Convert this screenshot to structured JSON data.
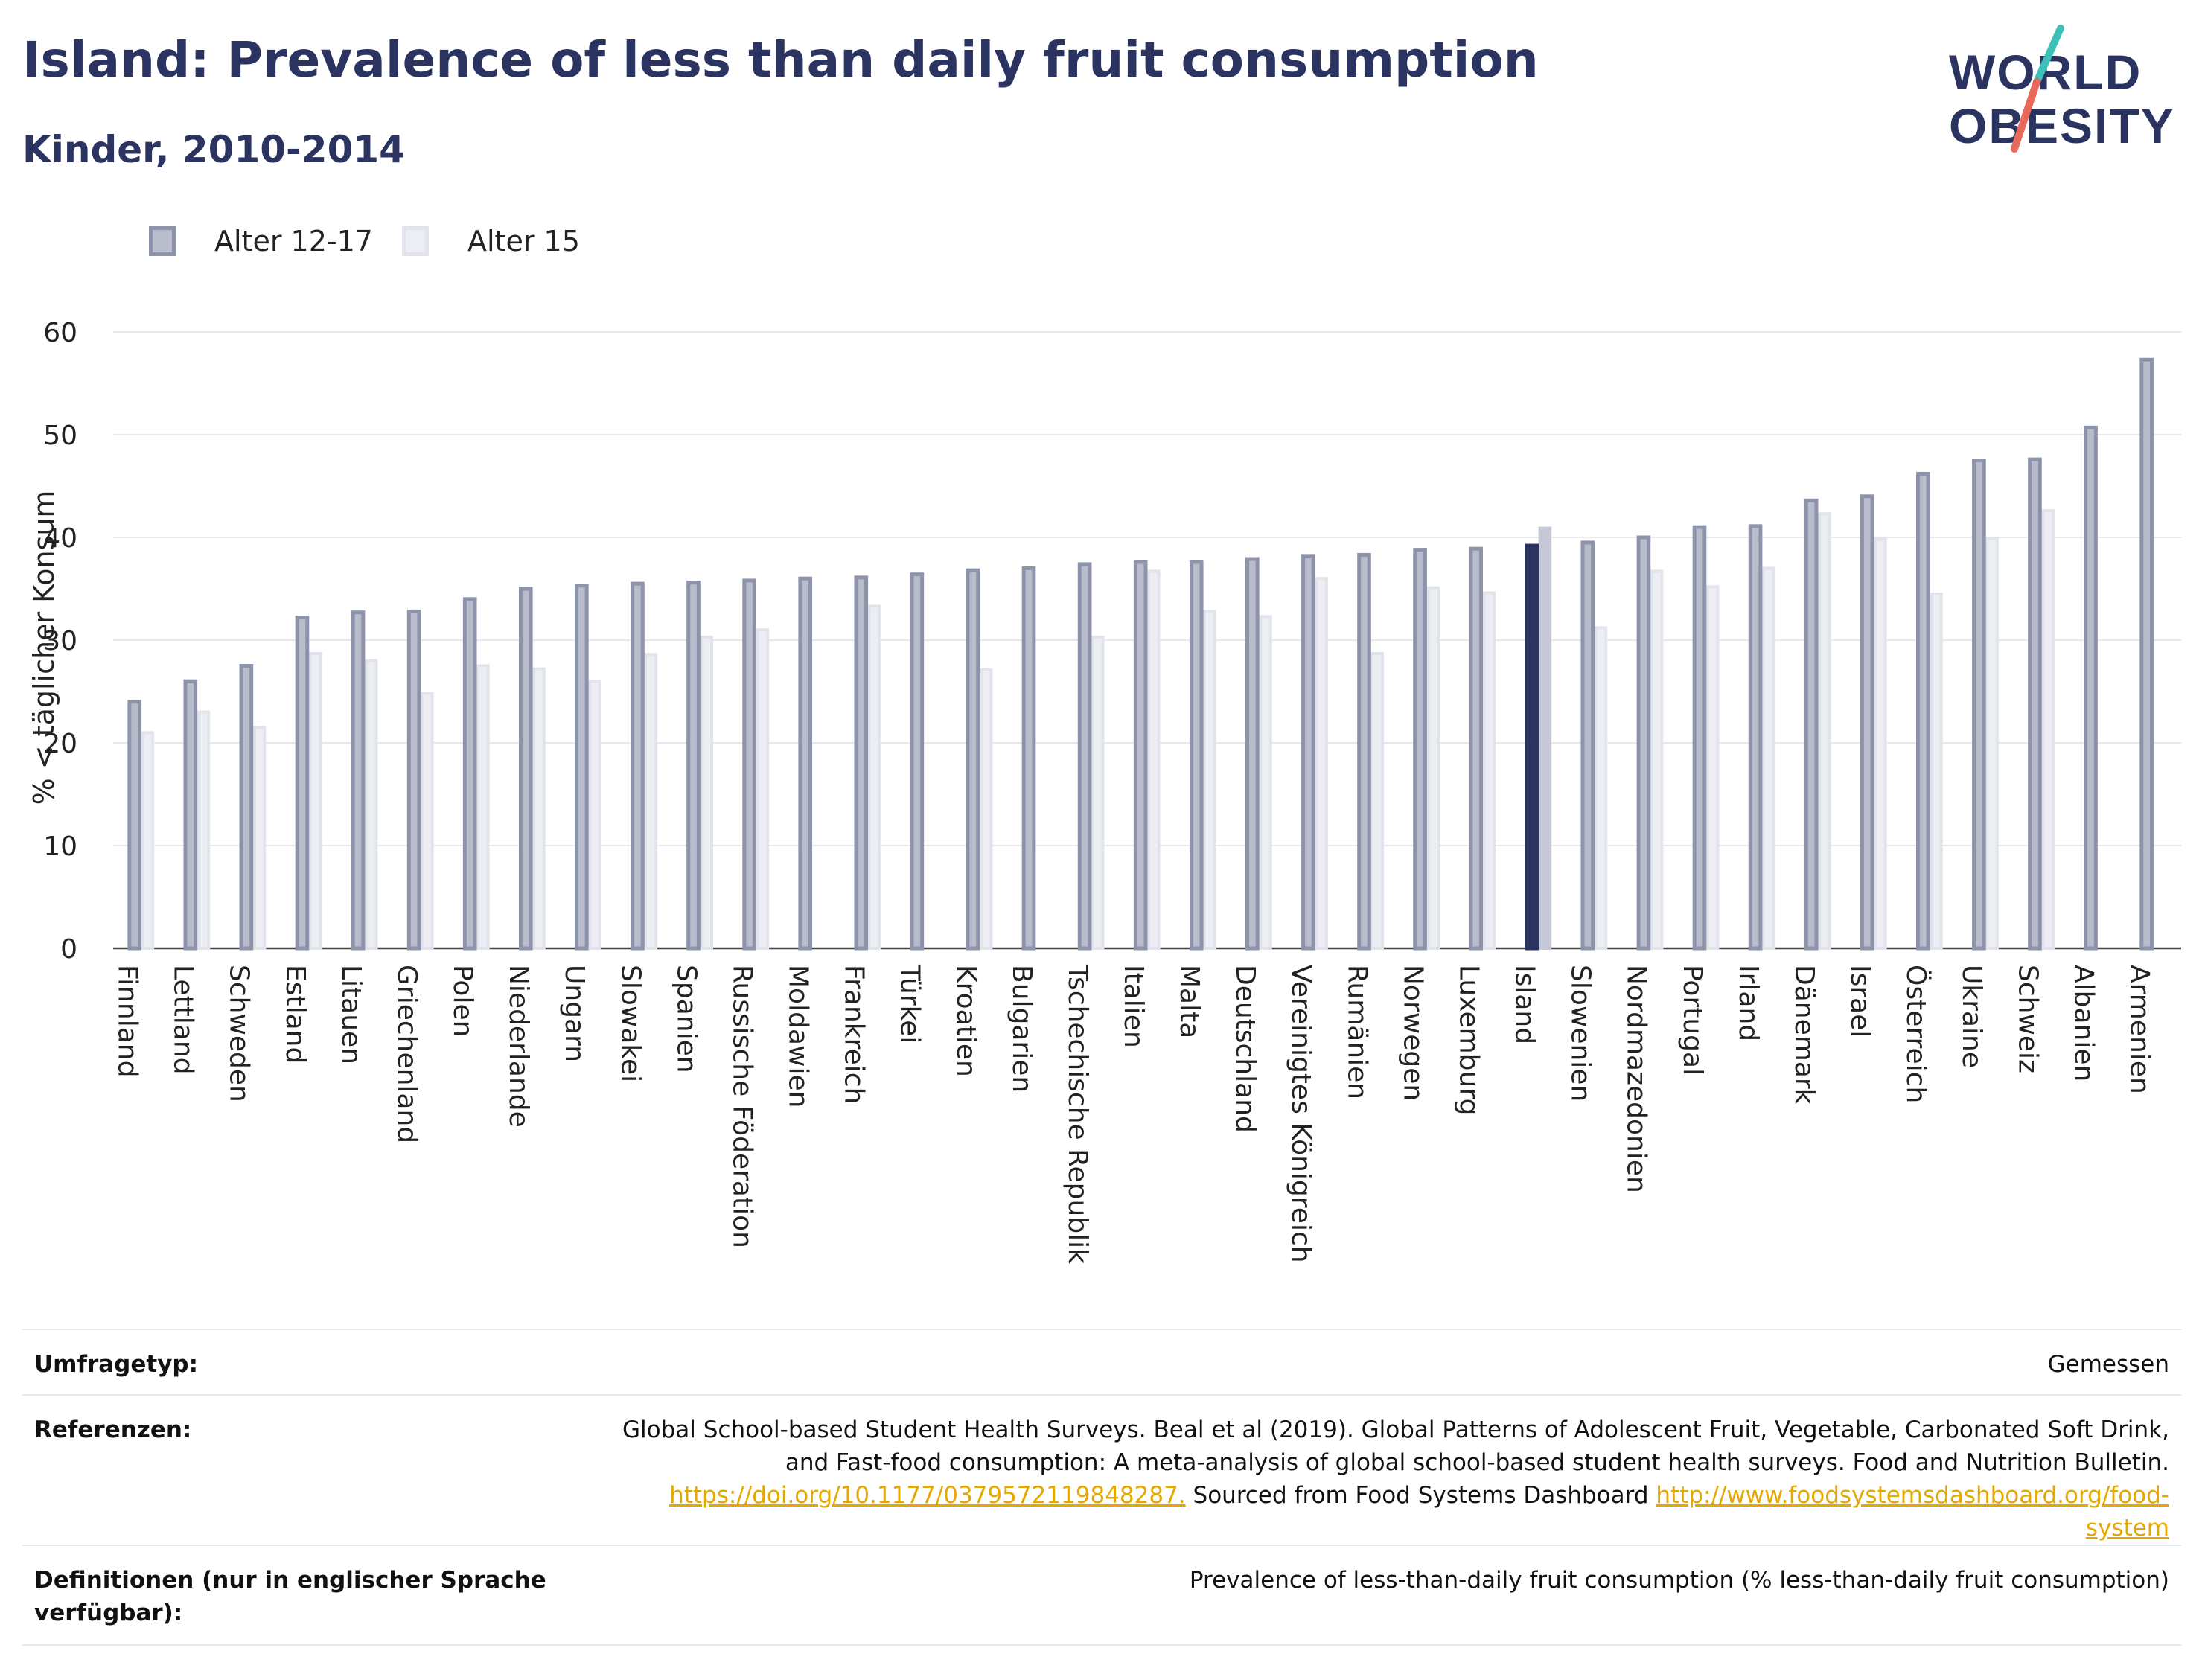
{
  "header": {
    "title": "Island: Prevalence of less than daily fruit consumption",
    "subtitle": "Kinder, 2010-2014"
  },
  "logo": {
    "line1": "WORLD",
    "line2": "OBESITY"
  },
  "colors": {
    "series_a_fill": "#b9bccb",
    "series_a_stroke": "#8d93ab",
    "series_b_fill": "#eceef3",
    "series_b_stroke": "#e2e4eb",
    "highlight_a": "#2b3460",
    "highlight_b": "#c5c8d6",
    "accent_teal": "#3cc0b8",
    "accent_red": "#e8685a"
  },
  "chart_data": {
    "type": "bar",
    "title": "Island: Prevalence of less than daily fruit consumption",
    "subtitle": "Kinder, 2010-2014",
    "ylabel": "% < täglicher Konsum",
    "xlabel": "",
    "ylim": [
      0,
      60
    ],
    "yticks": [
      0,
      10,
      20,
      30,
      40,
      50,
      60
    ],
    "grid": true,
    "legend_position": "top-left",
    "highlight": "Island",
    "categories": [
      "Finnland",
      "Lettland",
      "Schweden",
      "Estland",
      "Litauen",
      "Griechenland",
      "Polen",
      "Niederlande",
      "Ungarn",
      "Slowakei",
      "Spanien",
      "Russische Föderation",
      "Moldawien",
      "Frankreich",
      "Türkei",
      "Kroatien",
      "Bulgarien",
      "Tschechische Republik",
      "Italien",
      "Malta",
      "Deutschland",
      "Vereinigtes Königreich",
      "Rumänien",
      "Norwegen",
      "Luxemburg",
      "Island",
      "Slowenien",
      "Nordmazedonien",
      "Portugal",
      "Irland",
      "Dänemark",
      "Israel",
      "Österreich",
      "Ukraine",
      "Schweiz",
      "Albanien",
      "Armenien"
    ],
    "series": [
      {
        "name": "Alter 12-17",
        "values": [
          24.0,
          26.0,
          27.5,
          32.2,
          32.7,
          32.8,
          34.0,
          35.0,
          35.3,
          35.5,
          35.6,
          35.8,
          36.0,
          36.1,
          36.4,
          36.8,
          37.0,
          37.4,
          37.6,
          37.6,
          37.9,
          38.2,
          38.3,
          38.8,
          38.9,
          39.2,
          39.5,
          40.0,
          41.0,
          41.1,
          43.6,
          44.0,
          46.2,
          47.5,
          47.6,
          50.7,
          57.3
        ]
      },
      {
        "name": "Alter 15",
        "values": [
          21.0,
          23.0,
          21.5,
          28.7,
          28.0,
          24.8,
          27.5,
          27.2,
          26.0,
          28.6,
          30.3,
          31.0,
          null,
          33.3,
          null,
          27.1,
          null,
          30.3,
          36.7,
          32.8,
          32.3,
          36.0,
          28.7,
          35.1,
          34.6,
          40.9,
          31.2,
          36.7,
          35.2,
          37.0,
          42.3,
          39.8,
          34.5,
          39.9,
          42.6,
          null,
          null
        ]
      }
    ]
  },
  "footer": {
    "rows": [
      {
        "label": "Umfragetyp:",
        "text": "Gemessen"
      },
      {
        "label": "Referenzen:",
        "text1": "Global School-based Student Health Surveys. Beal et al (2019). Global Patterns of Adolescent Fruit, Vegetable, Carbonated Soft Drink,",
        "text2": "and Fast-food consumption: A meta-analysis of global school-based student health surveys. Food and Nutrition Bulletin.",
        "link1": "https://doi.org/10.1177/0379572119848287.",
        "mid": " Sourced from Food Systems Dashboard ",
        "link2a": "http://www.foodsystemsdashboard.org/food-",
        "link2b": "system"
      },
      {
        "label1": "Definitionen (nur in englischer Sprache",
        "label2": "verfügbar):",
        "text": "Prevalence of less-than-daily fruit consumption (% less-than-daily fruit consumption)"
      }
    ]
  }
}
